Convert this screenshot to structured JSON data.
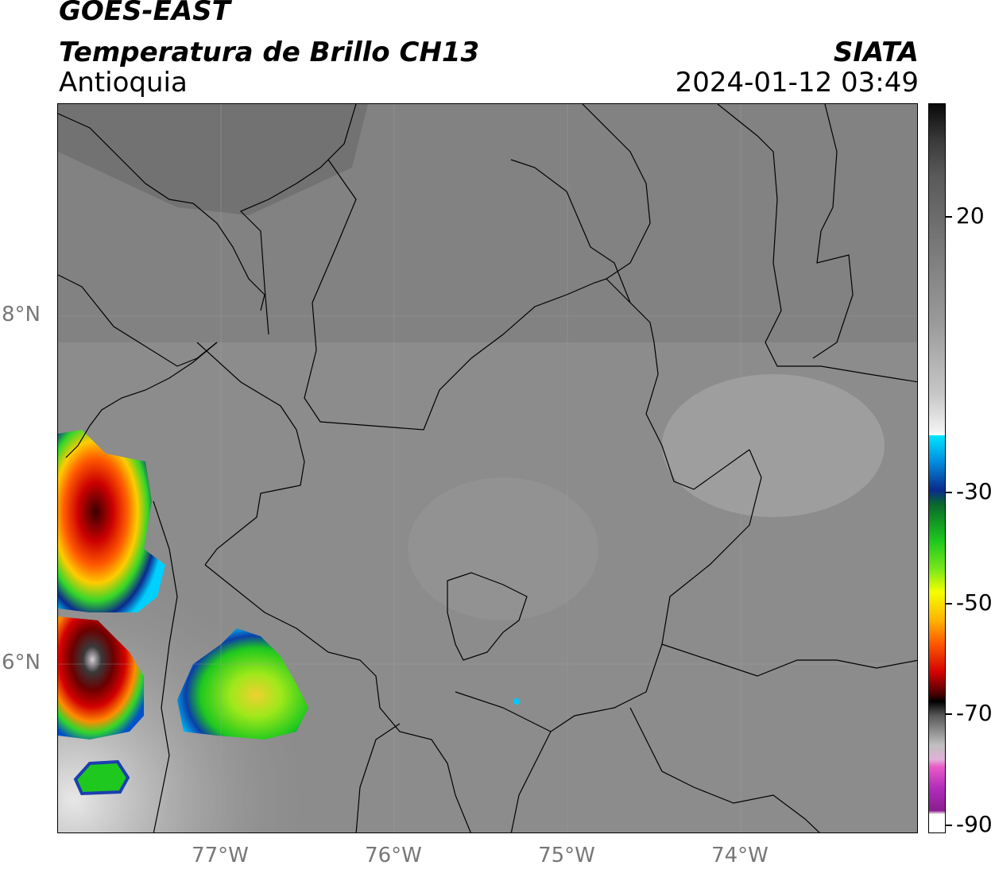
{
  "header": {
    "satellite": "GOES-EAST",
    "product": "Temperatura de Brillo CH13",
    "agency": "SIATA",
    "region": "Antioquia",
    "datetime": "2024-01-12 03:49"
  },
  "map": {
    "lat_labels": [
      "8°N",
      "6°N"
    ],
    "lon_labels": [
      "77°W",
      "76°W",
      "75°W",
      "74°W"
    ]
  },
  "colorbar": {
    "tick_labels": [
      "20",
      "-30",
      "-50",
      "-70",
      "-90"
    ],
    "colors": {
      "warm_black": "#111111",
      "gray": "#8a8a8a",
      "white": "#f5f5f5",
      "cyan": "#00e5ff",
      "blue": "#0b2a8c",
      "green": "#1ec81e",
      "yellow": "#f4ff00",
      "orange": "#ff8c00",
      "red": "#d40000",
      "dark_red": "#4a0000",
      "black": "#000000",
      "light_gray": "#cfcfcf",
      "pink": "#e85ac8",
      "purple": "#8a1f8f"
    }
  }
}
